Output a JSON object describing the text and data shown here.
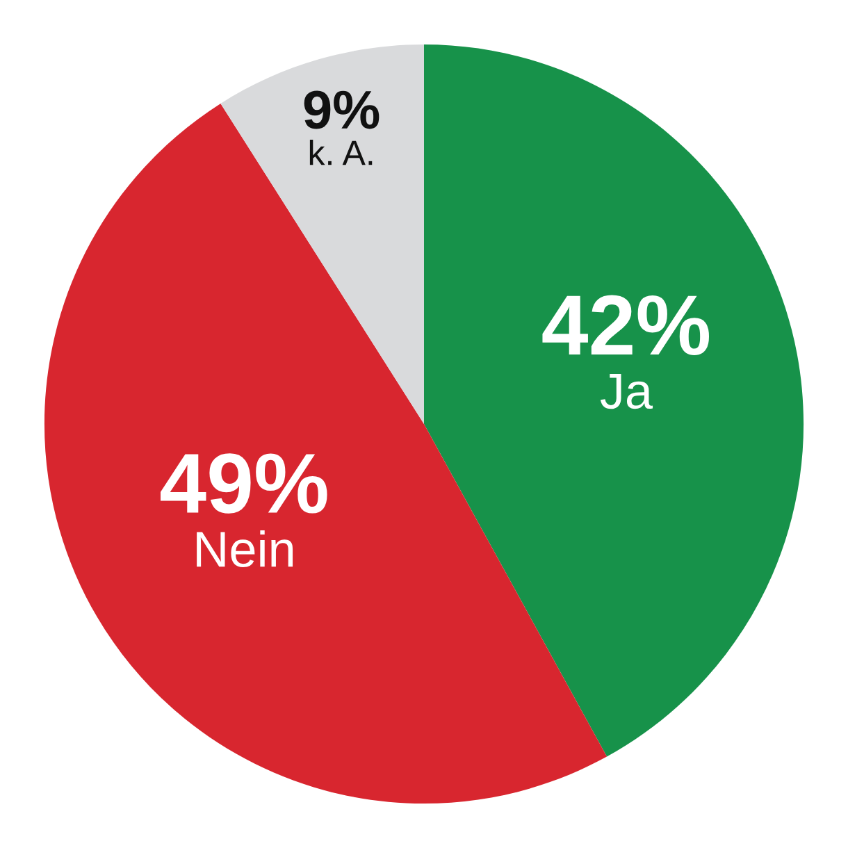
{
  "chart_data": {
    "type": "pie",
    "categories": [
      "Ja",
      "Nein",
      "k. A."
    ],
    "values": [
      42,
      49,
      9
    ],
    "value_labels": [
      "42%",
      "49%",
      "9%"
    ],
    "colors": [
      "#17924a",
      "#d8262f",
      "#d9dadc"
    ],
    "legend": false
  }
}
